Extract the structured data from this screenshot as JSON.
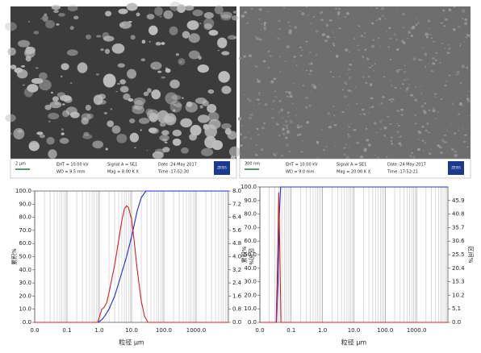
{
  "images": [
    {
      "scale_bar": "2 μm",
      "eht": "EHT = 10.00 kV",
      "wd": "WD = 9.5 mm",
      "signal": "Signal A = SE1",
      "mag": "Mag =  8.00 K X",
      "date": "Date :24 May 2017",
      "time": "Time :17:02:30",
      "brand": "ZEISS"
    },
    {
      "scale_bar": "300 nm",
      "eht": "EHT = 10.00 kV",
      "wd": "WD = 9.0 mm",
      "signal": "Signal A = SE1",
      "mag": "Mag = 20.00 K X",
      "date": "Date :24 May 2017",
      "time": "Time :17:52:21",
      "brand": "ZEISS"
    }
  ],
  "chart_data": [
    {
      "type": "line",
      "xlabel": "粒径 μm",
      "ylabel": "累积%",
      "y2label": "区间%",
      "log_x": true,
      "xlim": [
        0.01,
        10000
      ],
      "xticks": [
        {
          "value": 0.01,
          "label": "0.0"
        },
        0.1,
        {
          "value": 1,
          "label": "1.0"
        },
        {
          "value": 10,
          "label": "10.0"
        },
        {
          "value": 100,
          "label": "100.0"
        },
        {
          "value": 1000,
          "label": "1000.0"
        }
      ],
      "ylim": [
        0,
        100
      ],
      "yticks": [
        {
          "value": 0,
          "label": "0.0"
        },
        {
          "value": 10,
          "label": "10.0"
        },
        {
          "value": 20,
          "label": "20.0"
        },
        {
          "value": 30,
          "label": "30.0"
        },
        {
          "value": 40,
          "label": "40.0"
        },
        {
          "value": 50,
          "label": "50.0"
        },
        {
          "value": 60,
          "label": "60.0"
        },
        {
          "value": 70,
          "label": "70.0"
        },
        {
          "value": 80,
          "label": "80.0"
        },
        {
          "value": 90,
          "label": "90.0"
        },
        {
          "value": 100,
          "label": "100.0"
        }
      ],
      "y2lim": [
        0,
        8
      ],
      "y2ticks": [
        {
          "value": 0,
          "label": "0.0"
        },
        0.8,
        1.6,
        2.4,
        3.2,
        {
          "value": 4,
          "label": "4.0"
        },
        4.8,
        5.6,
        6.4,
        7.2,
        {
          "value": 8,
          "label": "8.0"
        }
      ],
      "grid": true,
      "series": [
        {
          "color": "#1f2fd0",
          "x": [
            0.01,
            0.9,
            1,
            1.2,
            1.5,
            2,
            3,
            4,
            5,
            7,
            10,
            15,
            20,
            28,
            10000
          ],
          "values": [
            0,
            0,
            0.5,
            2,
            5,
            10,
            20,
            30,
            38,
            50,
            65,
            85,
            95,
            100,
            100
          ]
        },
        {
          "color": "#d42020",
          "axis": "y2",
          "x": [
            0.01,
            0.9,
            1,
            1.2,
            1.4,
            1.7,
            2,
            3,
            4,
            5,
            6,
            7,
            8,
            10,
            12,
            15,
            20,
            25,
            32,
            10000
          ],
          "values": [
            0,
            0,
            0.3,
            0.8,
            0.9,
            1.2,
            1.8,
            3.5,
            5.0,
            6.2,
            6.9,
            7.1,
            7.0,
            6.3,
            5.0,
            3.2,
            1.3,
            0.4,
            0,
            0
          ]
        }
      ]
    },
    {
      "type": "line",
      "xlabel": "粒径 μm",
      "ylabel": "累积%",
      "y2label": "区间%",
      "log_x": true,
      "xlim": [
        0.01,
        10000
      ],
      "xticks": [
        {
          "value": 0.01,
          "label": "0.0"
        },
        0.1,
        {
          "value": 1,
          "label": "1.0"
        },
        {
          "value": 10,
          "label": "10.0"
        },
        {
          "value": 100,
          "label": "100.0"
        },
        {
          "value": 1000,
          "label": "1000.0"
        }
      ],
      "ylim": [
        0,
        100
      ],
      "yticks": [
        {
          "value": 0,
          "label": "0.0"
        },
        {
          "value": 10,
          "label": "10.0"
        },
        {
          "value": 20,
          "label": "20.0"
        },
        {
          "value": 30,
          "label": "30.0"
        },
        {
          "value": 40,
          "label": "40.0"
        },
        {
          "value": 50,
          "label": "50.0"
        },
        {
          "value": 60,
          "label": "60.0"
        },
        {
          "value": 70,
          "label": "70.0"
        },
        {
          "value": 80,
          "label": "80.0"
        },
        {
          "value": 90,
          "label": "90.0"
        },
        {
          "value": 100,
          "label": "100.0"
        }
      ],
      "y2lim": [
        0,
        51
      ],
      "y2ticks": [
        {
          "value": 0,
          "label": "0.0"
        },
        5.1,
        10.2,
        15.3,
        20.4,
        25.5,
        30.6,
        35.7,
        40.8,
        45.9
      ],
      "grid": true,
      "series": [
        {
          "color": "#1f2fd0",
          "x": [
            0.01,
            0.034,
            0.038,
            0.042,
            0.046,
            10000
          ],
          "values": [
            0,
            0,
            30,
            80,
            100,
            100
          ]
        },
        {
          "color": "#d42020",
          "axis": "y2",
          "x": [
            0.01,
            0.033,
            0.037,
            0.04,
            0.043,
            0.047,
            10000
          ],
          "values": [
            0,
            0,
            25,
            49,
            30,
            0,
            0
          ]
        }
      ]
    }
  ]
}
